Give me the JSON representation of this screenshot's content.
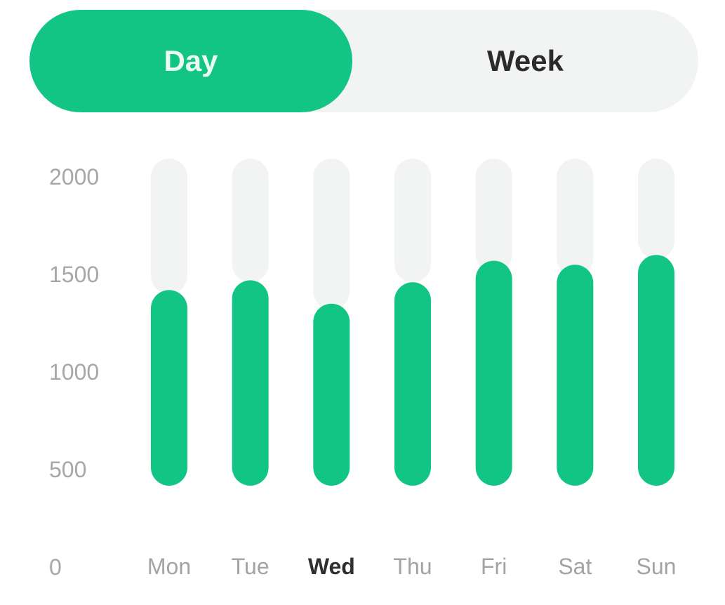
{
  "toggle": {
    "day_label": "Day",
    "week_label": "Week",
    "selected": "Day"
  },
  "colors": {
    "accent": "#12c584",
    "track": "#f2f3f3",
    "tick_text": "#a7a7a7",
    "selected_text": "#2f2f2f"
  },
  "chart_data": {
    "type": "bar",
    "categories": [
      "Mon",
      "Tue",
      "Wed",
      "Thu",
      "Fri",
      "Sat",
      "Sun"
    ],
    "selected_category": "Wed",
    "series": [
      {
        "values": [
          1420,
          1470,
          1350,
          1460,
          1570,
          1550,
          1600
        ]
      }
    ],
    "background_track_values": [
      1580,
      1640,
      1500,
      1640,
      1690,
      1670,
      1760
    ],
    "y_ticks": [
      0,
      500,
      1000,
      1500,
      2000
    ],
    "ylim": [
      0,
      2000
    ],
    "bar_baseline": 500,
    "grid": false
  }
}
